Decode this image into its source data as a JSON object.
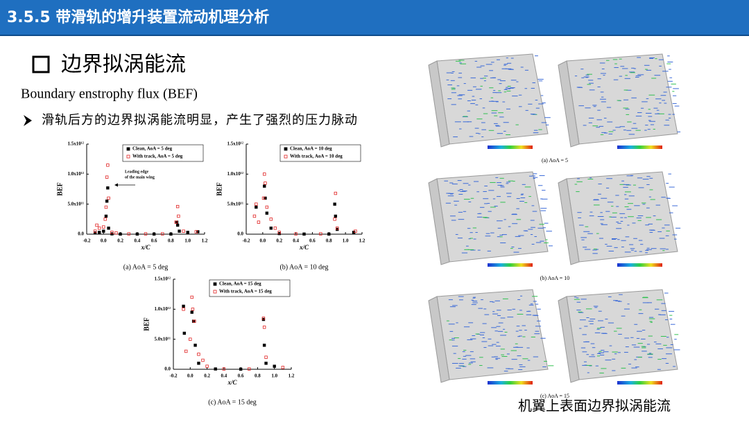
{
  "header": {
    "title": "3.5.5 带滑轨的增升装置流动机理分析"
  },
  "heading": "边界拟涡能流",
  "subheading": "Boundary enstrophy flux (BEF)",
  "bullet": "滑轨后方的边界拟涡能流明显，产生了强烈的压力脉动",
  "chart_data": [
    {
      "type": "scatter",
      "caption": "(a) AoA = 5 deg",
      "xlabel": "x/C",
      "ylabel": "BEF",
      "annotation": [
        "Leading edge",
        "of the main wing"
      ],
      "xlim": [
        -0.2,
        1.2
      ],
      "xticks": [
        -0.2,
        {
          "value": 0,
          "label": "0.0"
        },
        0.2,
        0.4,
        0.6,
        0.8,
        {
          "value": 1,
          "label": "1.0"
        },
        1.2
      ],
      "ylim": [
        0,
        1500000000000.0
      ],
      "yticks": [
        {
          "value": 0,
          "label": "0.0"
        },
        {
          "value": 500000000000.0,
          "label": "5.0x10¹¹"
        },
        {
          "value": 1000000000000.0,
          "label": "1.0x10¹²"
        },
        {
          "value": 1500000000000.0,
          "label": "1.5x10¹²"
        }
      ],
      "series": [
        {
          "name": "Clean, AoA = 5 deg",
          "color": "#000000",
          "x": [
            0.04,
            0.05,
            0.03,
            0.06,
            -0.1,
            -0.05,
            0.0,
            0.1,
            0.2,
            0.4,
            0.6,
            0.8,
            0.87,
            0.88,
            0.9,
            1.0,
            1.12
          ],
          "values": [
            550000000000.0,
            770000000000.0,
            300000000000.0,
            100000000000.0,
            20000000000.0,
            30000000000.0,
            50000000000.0,
            5000000000.0,
            2000000000.0,
            2000000000.0,
            2000000000.0,
            2000000000.0,
            200000000000.0,
            150000000000.0,
            50000000000.0,
            30000000000.0,
            40000000000.0
          ]
        },
        {
          "name": "With track, AoA = 5 deg",
          "color": "#e02020",
          "x": [
            0.05,
            0.04,
            0.06,
            0.03,
            0.02,
            -0.08,
            -0.05,
            -0.1,
            0.0,
            0.1,
            0.15,
            0.3,
            0.5,
            0.7,
            0.86,
            0.88,
            0.89,
            0.95,
            1.1
          ],
          "values": [
            1150000000000.0,
            950000000000.0,
            600000000000.0,
            450000000000.0,
            250000000000.0,
            150000000000.0,
            100000000000.0,
            50000000000.0,
            120000000000.0,
            30000000000.0,
            20000000000.0,
            5000000000.0,
            5000000000.0,
            5000000000.0,
            200000000000.0,
            460000000000.0,
            300000000000.0,
            50000000000.0,
            40000000000.0
          ]
        }
      ]
    },
    {
      "type": "scatter",
      "caption": "(b) AoA = 10 deg",
      "xlabel": "x/C",
      "ylabel": "BEF",
      "xlim": [
        -0.2,
        1.2
      ],
      "xticks": [
        -0.2,
        {
          "value": 0,
          "label": "0.0"
        },
        0.2,
        0.4,
        0.6,
        0.8,
        {
          "value": 1,
          "label": "1.0"
        },
        1.2
      ],
      "ylim": [
        0,
        1500000000000.0
      ],
      "yticks": [
        {
          "value": 0,
          "label": "0.0"
        },
        {
          "value": 500000000000.0,
          "label": "5.0x10¹¹"
        },
        {
          "value": 1000000000000.0,
          "label": "1.0x10¹²"
        },
        {
          "value": 1500000000000.0,
          "label": "1.5x10¹²"
        }
      ],
      "series": [
        {
          "name": "Clean, AoA = 10 deg",
          "color": "#000000",
          "x": [
            -0.08,
            0.02,
            0.03,
            0.05,
            0.1,
            0.2,
            0.5,
            0.8,
            0.87,
            0.88,
            0.9,
            1.1
          ],
          "values": [
            450000000000.0,
            800000000000.0,
            600000000000.0,
            350000000000.0,
            100000000000.0,
            10000000000.0,
            2000000000.0,
            2000000000.0,
            500000000000.0,
            300000000000.0,
            80000000000.0,
            30000000000.0
          ]
        },
        {
          "name": "With track, AoA = 10 deg",
          "color": "#e02020",
          "x": [
            0.02,
            0.03,
            0.01,
            0.05,
            -0.1,
            -0.08,
            -0.05,
            0.1,
            0.15,
            0.2,
            0.4,
            0.7,
            0.88,
            0.87,
            0.9,
            1.12
          ],
          "values": [
            1000000000000.0,
            850000000000.0,
            600000000000.0,
            450000000000.0,
            300000000000.0,
            500000000000.0,
            200000000000.0,
            250000000000.0,
            100000000000.0,
            30000000000.0,
            5000000000.0,
            5000000000.0,
            680000000000.0,
            250000000000.0,
            100000000000.0,
            50000000000.0
          ]
        }
      ]
    },
    {
      "type": "scatter",
      "caption": "(c) AoA = 15 deg",
      "xlabel": "x/C",
      "ylabel": "BEF",
      "xlim": [
        -0.2,
        1.2
      ],
      "xticks": [
        -0.2,
        {
          "value": 0,
          "label": "0.0"
        },
        0.2,
        0.4,
        0.6,
        0.8,
        {
          "value": 1,
          "label": "1.0"
        },
        1.2
      ],
      "ylim": [
        0,
        1500000000000.0
      ],
      "yticks": [
        {
          "value": 0,
          "label": "0.0"
        },
        {
          "value": 500000000000.0,
          "label": "5.0x10¹¹"
        },
        {
          "value": 1000000000000.0,
          "label": "1.0x10¹²"
        },
        {
          "value": 1500000000000.0,
          "label": "1.5x10¹²"
        }
      ],
      "series": [
        {
          "name": "Clean, AoA = 15 deg",
          "color": "#000000",
          "x": [
            -0.08,
            -0.07,
            0.02,
            0.04,
            0.06,
            0.1,
            0.3,
            0.6,
            0.87,
            0.88,
            0.9,
            1.0
          ],
          "values": [
            1050000000000.0,
            600000000000.0,
            950000000000.0,
            800000000000.0,
            400000000000.0,
            100000000000.0,
            5000000000.0,
            2000000000.0,
            830000000000.0,
            400000000000.0,
            100000000000.0,
            50000000000.0
          ]
        },
        {
          "name": "With track, AoA = 15 deg",
          "color": "#e02020",
          "x": [
            -0.08,
            0.02,
            0.03,
            0.05,
            -0.05,
            0.0,
            0.1,
            0.15,
            0.2,
            0.4,
            0.7,
            0.87,
            0.88,
            0.9,
            1.1
          ],
          "values": [
            1000000000000.0,
            1200000000000.0,
            1000000000000.0,
            800000000000.0,
            300000000000.0,
            500000000000.0,
            250000000000.0,
            150000000000.0,
            50000000000.0,
            5000000000.0,
            5000000000.0,
            850000000000.0,
            700000000000.0,
            200000000000.0,
            30000000000.0
          ]
        }
      ]
    }
  ],
  "figure": {
    "captions": [
      "(a) AoA = 5",
      "(b) AoA = 10",
      "(c) AoA = 15"
    ],
    "title": "机翼上表面边界拟涡能流"
  }
}
